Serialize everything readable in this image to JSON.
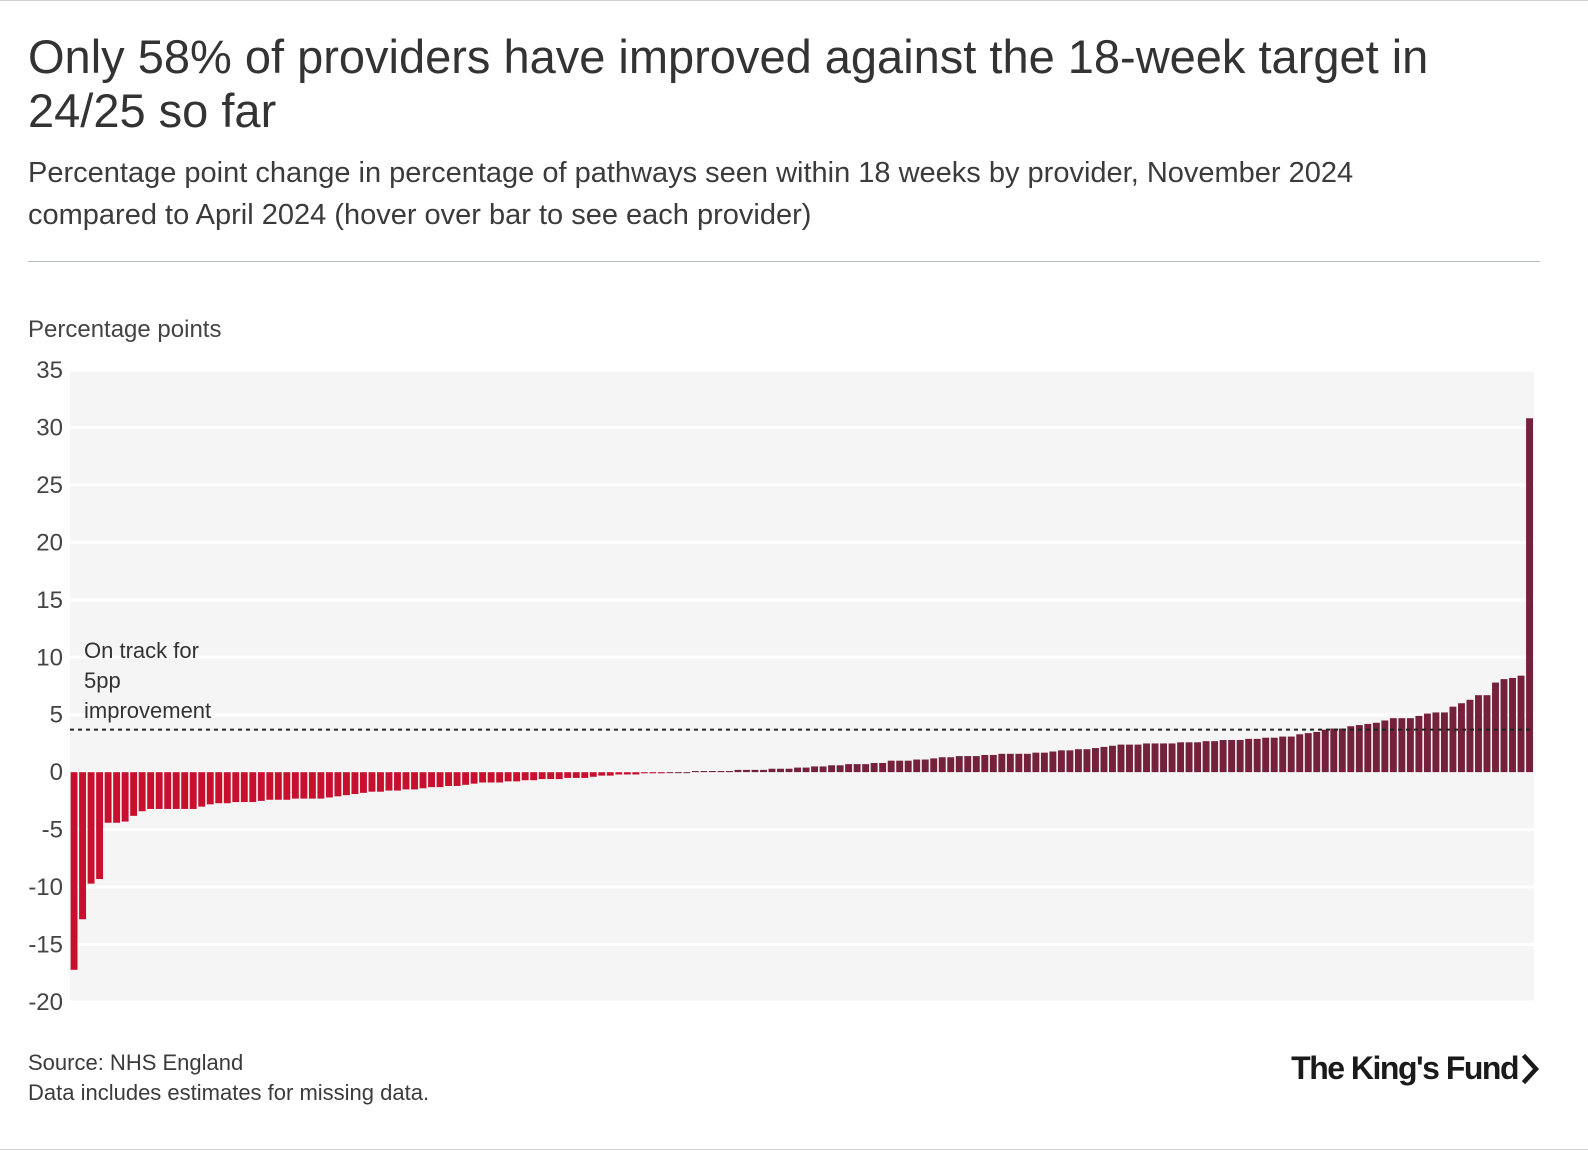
{
  "header": {
    "title": "Only 58% of providers have improved against the 18-week target in 24/25 so far",
    "subtitle": "Percentage point change in percentage of pathways seen within 18 weeks by provider, November 2024 compared to April 2024 (hover over bar to see each provider)"
  },
  "footer": {
    "source": "Source: NHS England",
    "note": "Data includes estimates for missing data.",
    "logo_text": "The King's Fund"
  },
  "colors": {
    "negative": "#c8102e",
    "positive": "#75213c",
    "plot_background": "#f5f5f5",
    "gridline": "#ffffff"
  },
  "chart_data": {
    "type": "bar",
    "title": "Only 58% of providers have improved against the 18-week target in 24/25 so far",
    "xlabel": "",
    "ylabel": "Percentage points",
    "ylim": [
      -20,
      35
    ],
    "yticks": [
      35,
      30,
      25,
      20,
      15,
      10,
      5,
      0,
      -5,
      -10,
      -15,
      -20
    ],
    "grid": true,
    "reference_line": {
      "value": 3.7,
      "style": "dotted",
      "label": [
        "On track for",
        "5pp",
        "improvement"
      ]
    },
    "values": [
      -17.2,
      -12.8,
      -9.7,
      -9.3,
      -4.4,
      -4.4,
      -4.3,
      -3.8,
      -3.4,
      -3.2,
      -3.2,
      -3.2,
      -3.2,
      -3.2,
      -3.2,
      -3.0,
      -2.8,
      -2.7,
      -2.7,
      -2.6,
      -2.6,
      -2.6,
      -2.5,
      -2.4,
      -2.4,
      -2.4,
      -2.3,
      -2.3,
      -2.3,
      -2.3,
      -2.2,
      -2.1,
      -2.0,
      -1.9,
      -1.8,
      -1.7,
      -1.7,
      -1.6,
      -1.6,
      -1.5,
      -1.5,
      -1.4,
      -1.3,
      -1.3,
      -1.2,
      -1.2,
      -1.1,
      -1.0,
      -0.9,
      -0.9,
      -0.9,
      -0.8,
      -0.8,
      -0.7,
      -0.7,
      -0.6,
      -0.6,
      -0.6,
      -0.5,
      -0.5,
      -0.5,
      -0.4,
      -0.3,
      -0.3,
      -0.2,
      -0.2,
      -0.2,
      -0.1,
      -0.1,
      -0.1,
      0.0,
      0.0,
      0.0,
      0.1,
      0.1,
      0.1,
      0.1,
      0.1,
      0.2,
      0.2,
      0.2,
      0.2,
      0.3,
      0.3,
      0.3,
      0.4,
      0.4,
      0.5,
      0.5,
      0.6,
      0.6,
      0.7,
      0.7,
      0.7,
      0.8,
      0.8,
      1.0,
      1.0,
      1.0,
      1.1,
      1.1,
      1.2,
      1.3,
      1.3,
      1.4,
      1.4,
      1.4,
      1.5,
      1.5,
      1.6,
      1.6,
      1.6,
      1.6,
      1.7,
      1.7,
      1.8,
      1.9,
      1.9,
      2.0,
      2.0,
      2.1,
      2.2,
      2.3,
      2.4,
      2.4,
      2.4,
      2.5,
      2.5,
      2.5,
      2.5,
      2.6,
      2.6,
      2.6,
      2.7,
      2.7,
      2.8,
      2.8,
      2.8,
      2.9,
      2.9,
      3.0,
      3.0,
      3.1,
      3.1,
      3.3,
      3.4,
      3.5,
      3.7,
      3.8,
      3.8,
      4.0,
      4.1,
      4.2,
      4.3,
      4.5,
      4.7,
      4.7,
      4.7,
      4.9,
      5.1,
      5.2,
      5.2,
      5.7,
      6.0,
      6.3,
      6.7,
      6.7,
      7.8,
      8.1,
      8.2,
      8.4,
      30.8
    ]
  }
}
